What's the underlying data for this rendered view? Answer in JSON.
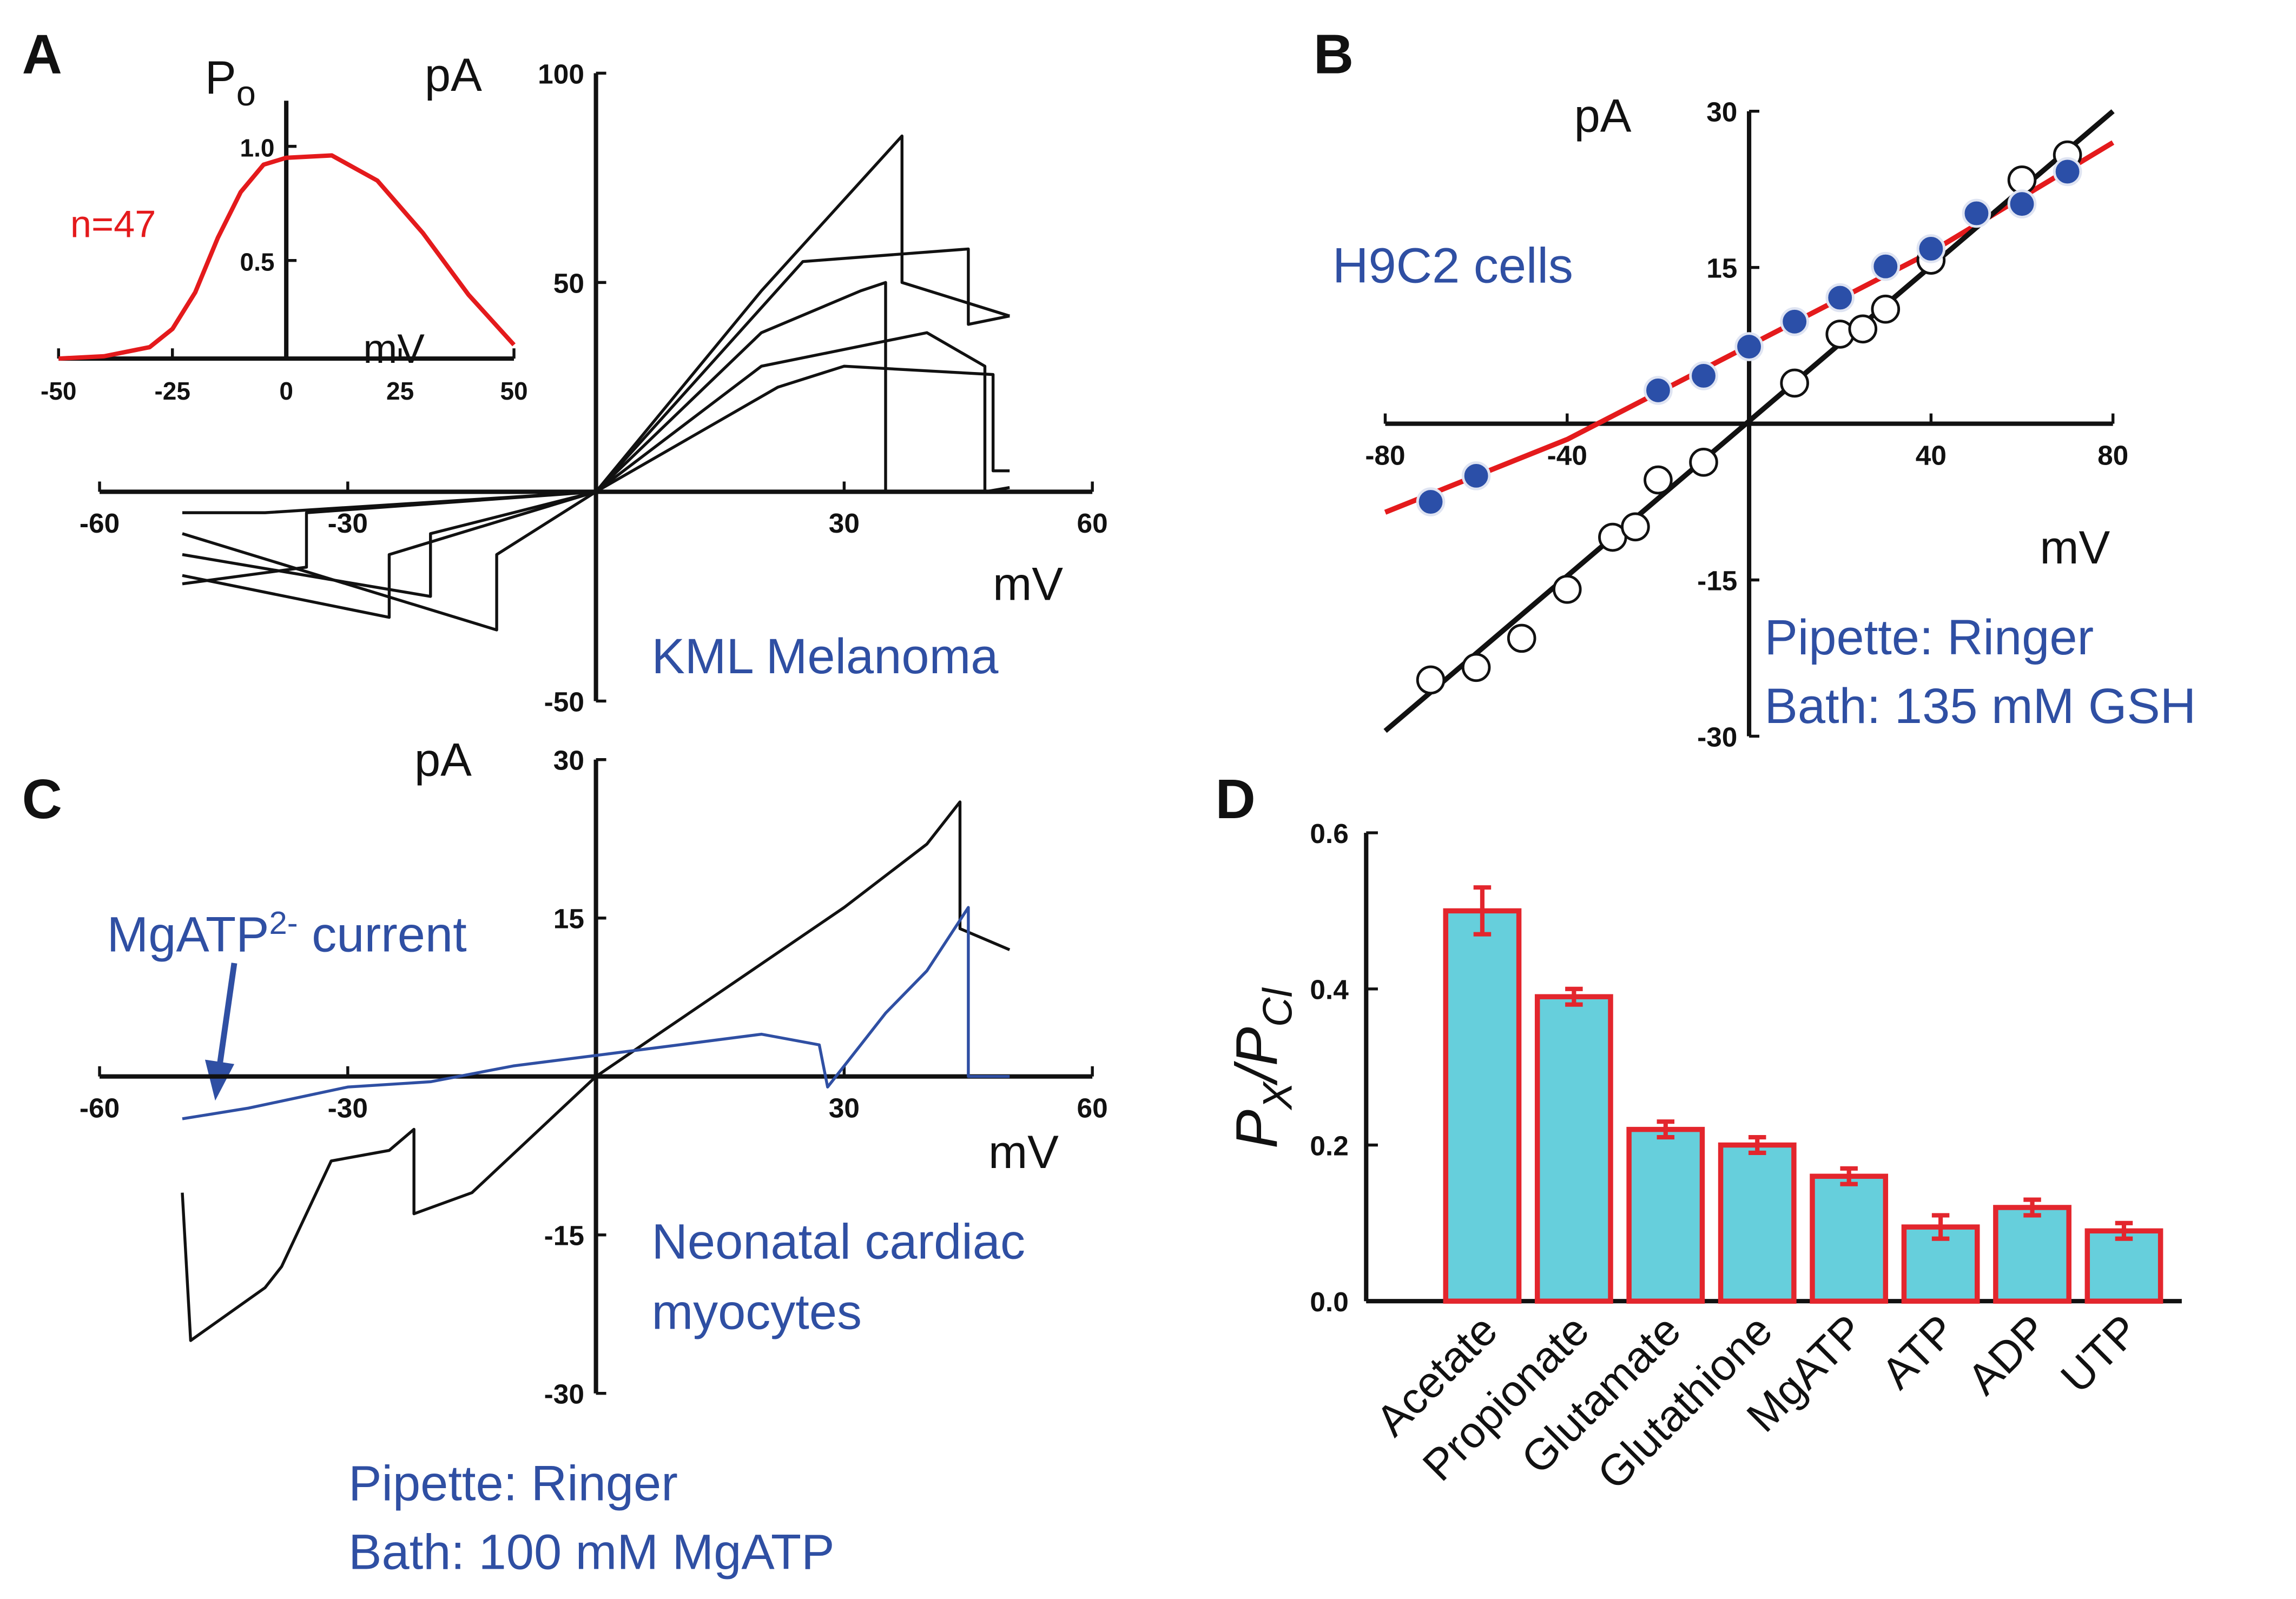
{
  "chart_data": [
    {
      "type": "line",
      "panel_label": "A",
      "x_label": "mV",
      "y_label": "pA",
      "annotations": [
        "KML Melanoma"
      ],
      "xlim": [
        -60,
        60
      ],
      "ylim": [
        -50,
        100
      ],
      "xticks": [
        -60,
        -30,
        30,
        60
      ],
      "yticks": [
        -50,
        50,
        100
      ],
      "series": [
        {
          "color": "#111111",
          "x": [
            -50,
            -35,
            -35,
            0,
            20,
            37,
            37,
            50
          ],
          "values": [
            -22,
            -18,
            -5,
            0,
            48,
            85,
            50,
            42
          ]
        },
        {
          "color": "#111111",
          "x": [
            -50,
            -25,
            -25,
            0,
            25,
            45,
            45,
            50
          ],
          "values": [
            -20,
            -30,
            -15,
            0,
            55,
            58,
            40,
            42
          ]
        },
        {
          "color": "#111111",
          "x": [
            -50,
            -20,
            -20,
            0,
            20,
            32,
            35,
            35,
            50
          ],
          "values": [
            -15,
            -25,
            -10,
            0,
            38,
            48,
            50,
            0,
            0
          ]
        },
        {
          "color": "#111111",
          "x": [
            -50,
            -12,
            -12,
            0,
            20,
            40,
            47,
            47,
            50
          ],
          "values": [
            -10,
            -33,
            -15,
            0,
            30,
            38,
            30,
            0,
            1
          ]
        },
        {
          "color": "#111111",
          "x": [
            -50,
            -40,
            0,
            22,
            30,
            48,
            48,
            50
          ],
          "values": [
            -5,
            -5,
            0,
            25,
            30,
            28,
            5,
            5
          ]
        }
      ]
    },
    {
      "type": "line",
      "x_label": "mV",
      "y_label": "P",
      "y_label_sub": "o",
      "annotations": [
        "n=47"
      ],
      "xlim": [
        -50,
        50
      ],
      "ylim": [
        0.07,
        1.2
      ],
      "xticks": [
        -50,
        -25,
        0,
        25,
        50
      ],
      "yticks": [
        0.5,
        {
          "value": 1,
          "label": "1.0"
        }
      ],
      "series": [
        {
          "color": "#e41a1c",
          "x": [
            -50,
            -40,
            -30,
            -25,
            -20,
            -15,
            -10,
            -5,
            0,
            10,
            20,
            30,
            40,
            50
          ],
          "values": [
            0.07,
            0.08,
            0.12,
            0.2,
            0.36,
            0.6,
            0.8,
            0.92,
            0.95,
            0.96,
            0.85,
            0.62,
            0.35,
            0.13
          ]
        }
      ]
    },
    {
      "type": "line",
      "panel_label": "B",
      "x_label": "mV",
      "y_label": "pA",
      "annotations": [
        "H9C2 cells",
        "Pipette: Ringer",
        "Bath: 135 mM GSH"
      ],
      "xlim": [
        -80,
        80
      ],
      "ylim": [
        -30,
        30
      ],
      "xticks": [
        -80,
        -40,
        40,
        80
      ],
      "yticks": [
        -30,
        -15,
        15,
        30
      ],
      "series": [
        {
          "color": "#e41a1c",
          "marker": "none",
          "x": [
            -80,
            -40,
            0,
            40,
            80
          ],
          "values": [
            -8.5,
            -1.5,
            7.5,
            16.5,
            27
          ]
        },
        {
          "color": "#111111",
          "marker": "none",
          "x": [
            -80,
            80
          ],
          "values": [
            -29.5,
            30
          ]
        },
        {
          "color": "#111111",
          "marker": "open",
          "line": false,
          "x": [
            -70,
            -60,
            -50,
            -40,
            -30,
            -25,
            -20,
            -10,
            10,
            20,
            25,
            30,
            40,
            60,
            70
          ],
          "values": [
            -24.6,
            -23.4,
            -20.6,
            -15.9,
            -10.9,
            -9.9,
            -5.4,
            -3.7,
            3.9,
            8.6,
            9.1,
            11,
            15.7,
            23.4,
            25.8
          ]
        },
        {
          "color": "#2b4fa8",
          "marker": "filled",
          "line": false,
          "x": [
            -70,
            -60,
            -20,
            -10,
            0,
            10,
            20,
            30,
            40,
            50,
            60,
            70
          ],
          "values": [
            -7.5,
            -5,
            3.2,
            4.6,
            7.4,
            9.8,
            12.1,
            15.1,
            16.8,
            20.2,
            21.1,
            24.2
          ]
        }
      ]
    },
    {
      "type": "line",
      "panel_label": "C",
      "x_label": "mV",
      "y_label": "pA",
      "callout": [
        "MgATP",
        "2-",
        " current"
      ],
      "annotations": [
        "Neonatal cardiac",
        "myocytes",
        "Pipette: Ringer",
        "Bath: 100 mM MgATP"
      ],
      "xlim": [
        -60,
        60
      ],
      "ylim": [
        -30,
        30
      ],
      "xticks": [
        -60,
        -30,
        30,
        60
      ],
      "yticks": [
        -30,
        -15,
        15,
        30
      ],
      "series": [
        {
          "color": "#111111",
          "x": [
            -50,
            -49,
            -40,
            -38,
            -32,
            -25,
            -22,
            -22,
            -15,
            0,
            15,
            30,
            40,
            44,
            44,
            50
          ],
          "values": [
            -11,
            -25,
            -20,
            -18,
            -8,
            -7,
            -5,
            -13,
            -11,
            0,
            8,
            16,
            22,
            26,
            14,
            12
          ]
        },
        {
          "color": "#2f4fa3",
          "x": [
            -50,
            -42,
            -30,
            -20,
            -10,
            0,
            10,
            20,
            27,
            28,
            32,
            35,
            40,
            45,
            45,
            50
          ],
          "values": [
            -4,
            -3,
            -1,
            -0.5,
            1,
            2,
            3,
            4,
            3,
            -1,
            3,
            6,
            10,
            16,
            0,
            0
          ]
        }
      ]
    },
    {
      "type": "bar",
      "panel_label": "D",
      "y_label": "P",
      "y_label_sub": "X",
      "y_label_mid": "/P",
      "y_label_sub2": "Cl",
      "categories": [
        "Acetate",
        "Propionate",
        "Glutamate",
        "Glutathione",
        "MgATP",
        "ATP",
        "ADP",
        "UTP"
      ],
      "values": [
        0.5,
        0.39,
        0.22,
        0.2,
        0.16,
        0.095,
        0.12,
        0.09
      ],
      "errors": [
        0.03,
        0.01,
        0.01,
        0.01,
        0.01,
        0.015,
        0.01,
        0.01
      ],
      "color": "#66cfdc",
      "edgecolor": "#e3262d",
      "ylim": [
        0,
        0.6
      ],
      "yticks": [
        {
          "value": 0,
          "label": "0.0"
        },
        0.2,
        0.4,
        0.6
      ]
    }
  ]
}
